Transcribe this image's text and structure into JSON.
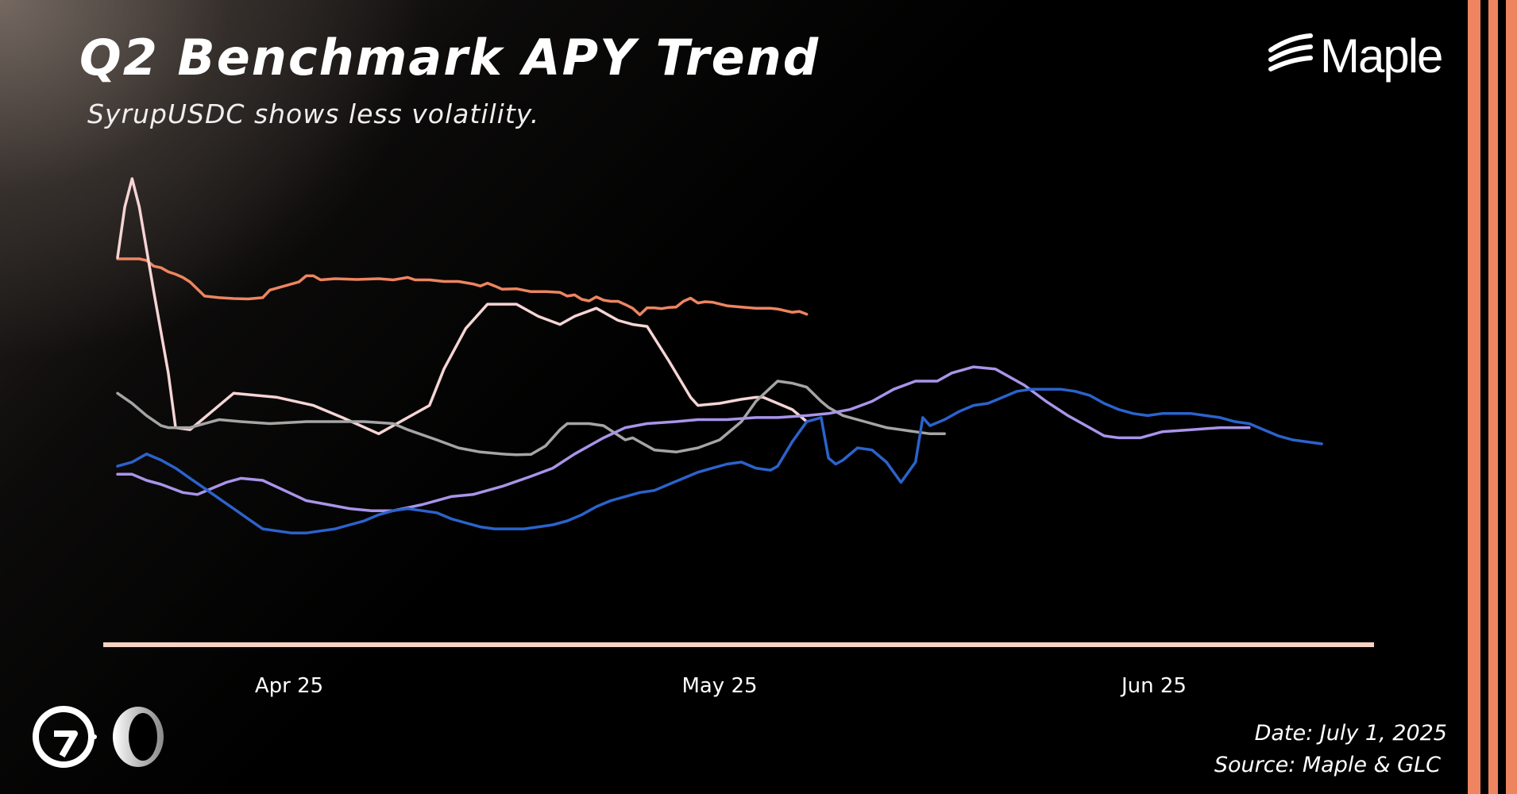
{
  "header": {
    "title": "Q2 Benchmark APY Trend",
    "subtitle": "SyrupUSDC shows less volatility.",
    "brand": "Maple"
  },
  "footer": {
    "date": "Date: July 1, 2025",
    "source": "Source: Maple & GLC"
  },
  "badges": [
    "g-circle-logo-icon",
    "ring-logo-icon"
  ],
  "colors": {
    "accent": "#ee8560",
    "axis": "#f7d3c3",
    "background": "#000000"
  },
  "chart_data": {
    "type": "line",
    "title": "Q2 Benchmark APY Trend",
    "xlabel": "",
    "ylabel": "",
    "x_ticks": [
      "Apr 25",
      "May 25",
      "Jun 25"
    ],
    "x_range": [
      "2025-03-17",
      "2025-07-01"
    ],
    "ylim": [
      0,
      100
    ],
    "grid": false,
    "legend": "none",
    "series": [
      {
        "color": "#ee8560",
        "values": [
          [
            0,
            80.2
          ],
          [
            3,
            80.2
          ],
          [
            4,
            79.8
          ],
          [
            5,
            78.4
          ],
          [
            6,
            78.0
          ],
          [
            7,
            77.0
          ],
          [
            8,
            76.4
          ],
          [
            9,
            75.6
          ],
          [
            10,
            74.5
          ],
          [
            12,
            71.0
          ],
          [
            14,
            70.6
          ],
          [
            16,
            70.4
          ],
          [
            18,
            70.3
          ],
          [
            20,
            70.6
          ],
          [
            21,
            72.5
          ],
          [
            23,
            73.5
          ],
          [
            25,
            74.5
          ],
          [
            26,
            76.0
          ],
          [
            27,
            76.0
          ],
          [
            28,
            75.0
          ],
          [
            30,
            75.3
          ],
          [
            33,
            75.1
          ],
          [
            36,
            75.3
          ],
          [
            38,
            75.0
          ],
          [
            40,
            75.6
          ],
          [
            41,
            75.0
          ],
          [
            43,
            75.0
          ],
          [
            45,
            74.6
          ],
          [
            47,
            74.6
          ],
          [
            49,
            74.0
          ],
          [
            50,
            73.5
          ],
          [
            51,
            74.2
          ],
          [
            52,
            73.5
          ],
          [
            53,
            72.7
          ],
          [
            55,
            72.8
          ],
          [
            57,
            72.1
          ],
          [
            59,
            72.1
          ],
          [
            61,
            71.9
          ],
          [
            62,
            71.0
          ],
          [
            63,
            71.3
          ],
          [
            64,
            70.2
          ],
          [
            65,
            69.8
          ],
          [
            66,
            70.8
          ],
          [
            67,
            70.0
          ],
          [
            68,
            69.7
          ],
          [
            69,
            69.7
          ],
          [
            70,
            68.9
          ],
          [
            71,
            68.0
          ],
          [
            72,
            66.4
          ],
          [
            73,
            68.1
          ],
          [
            74,
            68.1
          ],
          [
            75,
            67.9
          ],
          [
            76,
            68.2
          ],
          [
            77,
            68.3
          ],
          [
            78,
            69.7
          ],
          [
            79,
            70.5
          ],
          [
            80,
            69.3
          ],
          [
            81,
            69.6
          ],
          [
            82,
            69.5
          ],
          [
            84,
            68.6
          ],
          [
            86,
            68.3
          ],
          [
            88,
            68.0
          ],
          [
            90,
            68.0
          ],
          [
            91,
            67.8
          ],
          [
            93,
            67.0
          ],
          [
            94,
            67.2
          ],
          [
            95,
            66.5
          ]
        ]
      },
      {
        "color": "#f6d5d5",
        "values": [
          [
            0,
            80.5
          ],
          [
            1,
            93.0
          ],
          [
            2,
            100.0
          ],
          [
            3,
            93.0
          ],
          [
            5,
            72.0
          ],
          [
            7,
            52.0
          ],
          [
            8,
            38.5
          ],
          [
            10,
            38.0
          ],
          [
            13,
            42.5
          ],
          [
            16,
            47.0
          ],
          [
            22,
            46.0
          ],
          [
            27,
            44.0
          ],
          [
            31,
            41.0
          ],
          [
            36,
            37.0
          ],
          [
            39,
            40.0
          ],
          [
            43,
            44.0
          ],
          [
            45,
            53.0
          ],
          [
            48,
            63.0
          ],
          [
            51,
            69.0
          ],
          [
            55,
            69.0
          ],
          [
            58,
            66.0
          ],
          [
            61,
            64.0
          ],
          [
            63,
            66.0
          ],
          [
            66,
            68.0
          ],
          [
            69,
            65.0
          ],
          [
            71,
            64.0
          ],
          [
            73,
            63.5
          ],
          [
            76,
            55.0
          ],
          [
            79,
            46.0
          ],
          [
            80,
            44.0
          ],
          [
            83,
            44.5
          ],
          [
            86,
            45.5
          ],
          [
            88,
            46.0
          ],
          [
            89,
            46.0
          ],
          [
            91,
            44.5
          ],
          [
            93,
            43.0
          ],
          [
            95,
            40.0
          ]
        ]
      },
      {
        "color": "#a5a5a5",
        "values": [
          [
            0,
            47.0
          ],
          [
            2,
            44.5
          ],
          [
            4,
            41.5
          ],
          [
            6,
            39.0
          ],
          [
            7,
            38.5
          ],
          [
            10,
            38.5
          ],
          [
            12,
            39.5
          ],
          [
            14,
            40.5
          ],
          [
            17,
            40.0
          ],
          [
            21,
            39.5
          ],
          [
            26,
            40.0
          ],
          [
            31,
            40.0
          ],
          [
            34,
            40.0
          ],
          [
            38,
            39.5
          ],
          [
            40,
            38.0
          ],
          [
            44,
            35.5
          ],
          [
            47,
            33.5
          ],
          [
            50,
            32.5
          ],
          [
            53,
            32.0
          ],
          [
            55,
            31.8
          ],
          [
            57,
            31.9
          ],
          [
            59,
            34.0
          ],
          [
            61,
            38.0
          ],
          [
            62,
            39.5
          ],
          [
            65,
            39.5
          ],
          [
            67,
            39.0
          ],
          [
            70,
            35.5
          ],
          [
            71,
            36.0
          ],
          [
            72,
            35.0
          ],
          [
            74,
            33.0
          ],
          [
            77,
            32.5
          ],
          [
            80,
            33.5
          ],
          [
            83,
            35.5
          ],
          [
            86,
            40.0
          ],
          [
            88,
            45.0
          ],
          [
            91,
            50.0
          ],
          [
            93,
            49.5
          ],
          [
            95,
            48.5
          ],
          [
            97,
            45.0
          ],
          [
            98,
            43.5
          ],
          [
            100,
            41.5
          ],
          [
            103,
            40.0
          ],
          [
            105,
            39.0
          ],
          [
            106,
            38.5
          ],
          [
            108,
            38.0
          ],
          [
            110,
            37.5
          ],
          [
            112,
            37.0
          ],
          [
            114,
            37.0
          ]
        ]
      },
      {
        "color": "#a994ea",
        "values": [
          [
            0,
            27.0
          ],
          [
            2,
            27.0
          ],
          [
            4,
            25.5
          ],
          [
            6,
            24.5
          ],
          [
            9,
            22.5
          ],
          [
            11,
            22.0
          ],
          [
            13,
            23.5
          ],
          [
            15,
            25.0
          ],
          [
            17,
            26.0
          ],
          [
            20,
            25.5
          ],
          [
            23,
            23.0
          ],
          [
            26,
            20.5
          ],
          [
            29,
            19.5
          ],
          [
            32,
            18.5
          ],
          [
            35,
            18.0
          ],
          [
            38,
            18.0
          ],
          [
            42,
            19.5
          ],
          [
            46,
            21.5
          ],
          [
            49,
            22.0
          ],
          [
            53,
            24.0
          ],
          [
            57,
            26.5
          ],
          [
            60,
            28.5
          ],
          [
            63,
            32.0
          ],
          [
            67,
            36.0
          ],
          [
            70,
            38.5
          ],
          [
            73,
            39.5
          ],
          [
            77,
            40.0
          ],
          [
            80,
            40.5
          ],
          [
            84,
            40.5
          ],
          [
            88,
            41.0
          ],
          [
            91,
            41.0
          ],
          [
            95,
            41.5
          ],
          [
            98,
            42.0
          ],
          [
            101,
            43.0
          ],
          [
            104,
            45.0
          ],
          [
            107,
            48.0
          ],
          [
            110,
            50.0
          ],
          [
            113,
            50.0
          ],
          [
            115,
            52.0
          ],
          [
            118,
            53.5
          ],
          [
            121,
            53.0
          ],
          [
            125,
            49.0
          ],
          [
            128,
            45.0
          ],
          [
            131,
            41.5
          ],
          [
            134,
            38.5
          ],
          [
            136,
            36.5
          ],
          [
            138,
            36.0
          ],
          [
            141,
            36.0
          ],
          [
            144,
            37.5
          ],
          [
            148,
            38.0
          ],
          [
            152,
            38.5
          ],
          [
            156,
            38.5
          ]
        ]
      },
      {
        "color": "#2b63cc",
        "values": [
          [
            0,
            29.0
          ],
          [
            2,
            30.0
          ],
          [
            4,
            32.0
          ],
          [
            6,
            30.5
          ],
          [
            8,
            28.5
          ],
          [
            10,
            26.0
          ],
          [
            12,
            23.5
          ],
          [
            14,
            21.0
          ],
          [
            16,
            18.5
          ],
          [
            18,
            16.0
          ],
          [
            20,
            13.5
          ],
          [
            22,
            13.0
          ],
          [
            24,
            12.5
          ],
          [
            26,
            12.5
          ],
          [
            28,
            13.0
          ],
          [
            30,
            13.5
          ],
          [
            32,
            14.5
          ],
          [
            34,
            15.5
          ],
          [
            36,
            17.0
          ],
          [
            38,
            18.0
          ],
          [
            40,
            18.5
          ],
          [
            42,
            18.0
          ],
          [
            44,
            17.5
          ],
          [
            46,
            16.0
          ],
          [
            48,
            15.0
          ],
          [
            50,
            14.0
          ],
          [
            52,
            13.5
          ],
          [
            54,
            13.5
          ],
          [
            56,
            13.5
          ],
          [
            58,
            14.0
          ],
          [
            60,
            14.5
          ],
          [
            62,
            15.5
          ],
          [
            64,
            17.0
          ],
          [
            66,
            19.0
          ],
          [
            68,
            20.5
          ],
          [
            70,
            21.5
          ],
          [
            72,
            22.5
          ],
          [
            74,
            23.0
          ],
          [
            76,
            24.5
          ],
          [
            78,
            26.0
          ],
          [
            80,
            27.5
          ],
          [
            82,
            28.5
          ],
          [
            84,
            29.5
          ],
          [
            86,
            30.0
          ],
          [
            88,
            28.5
          ],
          [
            90,
            28.0
          ],
          [
            91,
            29.0
          ],
          [
            92,
            32.0
          ],
          [
            93,
            35.0
          ],
          [
            94,
            37.5
          ],
          [
            95,
            40.0
          ],
          [
            96,
            40.5
          ],
          [
            97,
            41.0
          ],
          [
            98,
            31.0
          ],
          [
            99,
            29.5
          ],
          [
            100,
            30.5
          ],
          [
            102,
            33.5
          ],
          [
            104,
            33.0
          ],
          [
            106,
            30.0
          ],
          [
            108,
            25.0
          ],
          [
            110,
            30.0
          ],
          [
            111,
            41.0
          ],
          [
            112,
            39.0
          ],
          [
            114,
            40.5
          ],
          [
            116,
            42.5
          ],
          [
            118,
            44.0
          ],
          [
            120,
            44.5
          ],
          [
            122,
            46.0
          ],
          [
            124,
            47.5
          ],
          [
            126,
            48.0
          ],
          [
            128,
            48.0
          ],
          [
            130,
            48.0
          ],
          [
            132,
            47.5
          ],
          [
            134,
            46.5
          ],
          [
            136,
            44.5
          ],
          [
            138,
            43.0
          ],
          [
            140,
            42.0
          ],
          [
            142,
            41.5
          ],
          [
            144,
            42.0
          ],
          [
            146,
            42.0
          ],
          [
            148,
            42.0
          ],
          [
            150,
            41.5
          ],
          [
            152,
            41.0
          ],
          [
            154,
            40.0
          ],
          [
            156,
            39.5
          ],
          [
            158,
            38.0
          ],
          [
            160,
            36.5
          ],
          [
            162,
            35.5
          ],
          [
            164,
            35.0
          ],
          [
            166,
            34.5
          ]
        ]
      }
    ]
  }
}
